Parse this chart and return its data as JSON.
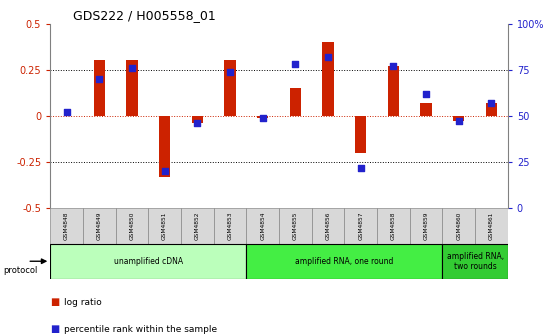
{
  "title": "GDS222 / H005558_01",
  "samples": [
    "GSM4848",
    "GSM4849",
    "GSM4850",
    "GSM4851",
    "GSM4852",
    "GSM4853",
    "GSM4854",
    "GSM4855",
    "GSM4856",
    "GSM4857",
    "GSM4858",
    "GSM4859",
    "GSM4860",
    "GSM4861"
  ],
  "log_ratio": [
    0.0,
    0.3,
    0.3,
    -0.33,
    -0.04,
    0.3,
    -0.01,
    0.15,
    0.4,
    -0.2,
    0.27,
    0.07,
    -0.03,
    0.07
  ],
  "percentile": [
    52,
    70,
    76,
    20,
    46,
    74,
    49,
    78,
    82,
    22,
    77,
    62,
    47,
    57
  ],
  "bar_color": "#cc2200",
  "dot_color": "#2222cc",
  "bg_color": "#ffffff",
  "ylim_left": [
    -0.5,
    0.5
  ],
  "ylim_right": [
    0,
    100
  ],
  "yticks_left": [
    -0.5,
    -0.25,
    0.0,
    0.25,
    0.5
  ],
  "yticks_right": [
    0,
    25,
    50,
    75,
    100
  ],
  "ytick_labels_left": [
    "-0.5",
    "-0.25",
    "0",
    "0.25",
    "0.5"
  ],
  "ytick_labels_right": [
    "0",
    "25",
    "50",
    "75",
    "100%"
  ],
  "hlines": [
    0.25,
    -0.25
  ],
  "protocol_groups": [
    {
      "label": "unamplified cDNA",
      "start": 0,
      "end": 5,
      "color": "#bbffbb"
    },
    {
      "label": "amplified RNA, one round",
      "start": 6,
      "end": 11,
      "color": "#44ee44"
    },
    {
      "label": "amplified RNA,\ntwo rounds",
      "start": 12,
      "end": 13,
      "color": "#33cc33"
    }
  ],
  "bar_width": 0.35,
  "dot_size": 22,
  "sample_box_color": "#d8d8d8",
  "legend_red_label": "log ratio",
  "legend_blue_label": "percentile rank within the sample"
}
